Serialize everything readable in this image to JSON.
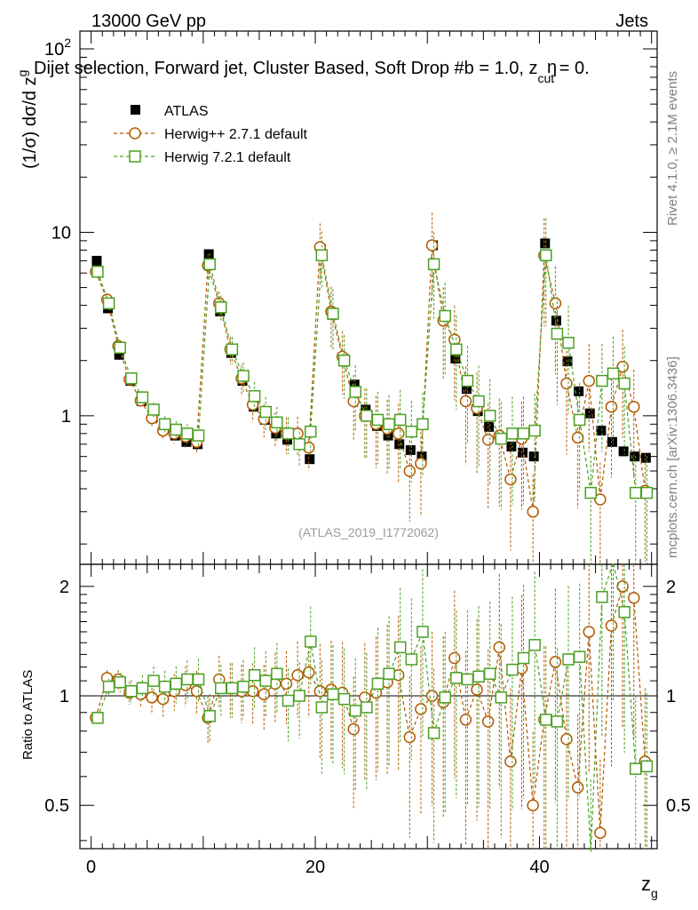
{
  "header": {
    "energy": "13000 GeV pp",
    "category": "Jets",
    "title": "Dijet selection, Forward jet, Cluster Based, Soft Drop #b = 1.0, z",
    "title_sub": "cut",
    "title_tail": " = 0.",
    "eta_overlay": "η",
    "rivet_note": "Rivet 4.1.0, ≥ 2.1M events",
    "mcplots_note": "mcplots.cern.ch [arXiv:1306.3436]",
    "analysis_id": "(ATLAS_2019_I1772062)"
  },
  "chart_data": {
    "type": "line",
    "ylabel": "(1/σ) dσ/d z",
    "ylabel_sub": "g",
    "xlabel": "z",
    "xlabel_sub": "g",
    "ratio_ylabel": "Ratio to ATLAS",
    "xlim": [
      -1,
      50.5
    ],
    "ylim": [
      0.155,
      125
    ],
    "ratio_ylim": [
      0.38,
      2.3
    ],
    "x_ticks": [
      "0",
      "20",
      "40"
    ],
    "y_ticks": [
      "1",
      "10"
    ],
    "y_tick_top": "10",
    "y_tick_top_exp": "2",
    "ratio_ticks": [
      "0.5",
      "1",
      "2"
    ],
    "legend": [
      "ATLAS",
      "Herwig++ 2.7.1 default",
      "Herwig 7.2.1 default"
    ],
    "x": [
      0.5,
      1.5,
      2.5,
      3.5,
      4.5,
      5.5,
      6.5,
      7.5,
      8.5,
      9.5,
      10.5,
      11.5,
      12.5,
      13.5,
      14.5,
      15.5,
      16.5,
      17.5,
      18.5,
      19.5,
      20.5,
      21.5,
      22.5,
      23.5,
      24.5,
      25.5,
      26.5,
      27.5,
      28.5,
      29.5,
      30.5,
      31.5,
      32.5,
      33.5,
      34.5,
      35.5,
      36.5,
      37.5,
      38.5,
      39.5,
      40.5,
      41.5,
      42.5,
      43.5,
      44.5,
      45.5,
      46.5,
      47.5,
      48.5,
      49.5
    ],
    "series": [
      {
        "name": "ATLAS",
        "color": "#000000",
        "values": [
          7.0,
          3.85,
          2.15,
          1.55,
          1.2,
          0.98,
          0.85,
          0.78,
          0.72,
          0.7,
          7.6,
          3.7,
          2.2,
          1.55,
          1.12,
          0.95,
          0.8,
          0.74,
          0.7,
          0.58,
          8.1,
          3.55,
          2.05,
          1.48,
          1.08,
          0.88,
          0.78,
          0.7,
          0.65,
          0.6,
          8.5,
          3.45,
          2.05,
          1.4,
          1.06,
          0.87,
          0.76,
          0.68,
          0.63,
          0.6,
          8.7,
          3.3,
          1.98,
          1.36,
          1.03,
          0.83,
          0.72,
          0.64,
          0.6,
          0.59
        ],
        "ratio": [
          1,
          1,
          1,
          1,
          1,
          1,
          1,
          1,
          1,
          1,
          1,
          1,
          1,
          1,
          1,
          1,
          1,
          1,
          1,
          1,
          1,
          1,
          1,
          1,
          1,
          1,
          1,
          1,
          1,
          1,
          1,
          1,
          1,
          1,
          1,
          1,
          1,
          1,
          1,
          1,
          1,
          1,
          1,
          1,
          1,
          1,
          1,
          1,
          1,
          1
        ]
      },
      {
        "name": "Herwig++ 2.7.1 default",
        "color": "#b35a00",
        "values": [
          6.1,
          4.3,
          2.4,
          1.58,
          1.21,
          0.97,
          0.83,
          0.8,
          0.77,
          0.72,
          6.6,
          4.1,
          2.3,
          1.6,
          1.15,
          0.96,
          0.86,
          0.8,
          0.8,
          0.67,
          8.3,
          3.7,
          2.1,
          1.2,
          1.0,
          0.9,
          0.85,
          0.8,
          0.5,
          0.55,
          8.5,
          3.3,
          2.6,
          1.2,
          1.1,
          0.74,
          0.78,
          0.45,
          0.75,
          0.3,
          7.5,
          4.1,
          1.5,
          0.76,
          1.55,
          0.35,
          1.12,
          1.85,
          1.12,
          0.39
        ],
        "ratio": [
          0.87,
          1.12,
          1.11,
          1.02,
          1.01,
          0.99,
          0.98,
          1.03,
          1.07,
          1.03,
          0.87,
          1.11,
          1.05,
          1.03,
          1.03,
          1.01,
          1.08,
          1.08,
          1.14,
          1.16,
          1.03,
          1.04,
          1.02,
          0.81,
          0.99,
          1.02,
          1.09,
          1.14,
          0.77,
          0.92,
          1.0,
          0.96,
          1.27,
          0.86,
          1.04,
          0.85,
          1.36,
          0.66,
          1.19,
          0.5,
          0.86,
          1.24,
          0.76,
          0.56,
          1.5,
          0.42,
          1.56,
          2.0,
          1.86,
          0.66
        ]
      },
      {
        "name": "Herwig 7.2.1 default",
        "color": "#4aa022",
        "values": [
          6.1,
          4.1,
          2.35,
          1.6,
          1.26,
          1.08,
          0.9,
          0.84,
          0.8,
          0.78,
          6.7,
          3.9,
          2.3,
          1.65,
          1.28,
          1.05,
          0.92,
          0.8,
          0.7,
          0.82,
          7.5,
          3.6,
          2.0,
          1.35,
          1.0,
          0.95,
          0.9,
          0.95,
          0.82,
          0.9,
          6.7,
          3.5,
          2.3,
          1.55,
          1.2,
          1.0,
          0.75,
          0.8,
          0.8,
          0.83,
          7.5,
          2.8,
          2.5,
          0.95,
          0.38,
          1.55,
          1.7,
          1.5,
          0.38,
          0.38
        ],
        "ratio": [
          0.87,
          1.06,
          1.09,
          1.03,
          1.05,
          1.1,
          1.06,
          1.08,
          1.11,
          1.11,
          0.88,
          1.05,
          1.05,
          1.06,
          1.14,
          1.1,
          1.15,
          0.97,
          1.0,
          1.41,
          0.93,
          1.01,
          0.98,
          0.91,
          0.93,
          1.08,
          1.15,
          1.36,
          1.26,
          1.5,
          0.79,
          0.99,
          1.12,
          1.11,
          1.13,
          1.15,
          0.99,
          1.18,
          1.27,
          1.38,
          0.86,
          0.85,
          1.26,
          1.28,
          0.37,
          1.87,
          2.36,
          1.7,
          0.63,
          0.64
        ]
      }
    ]
  }
}
